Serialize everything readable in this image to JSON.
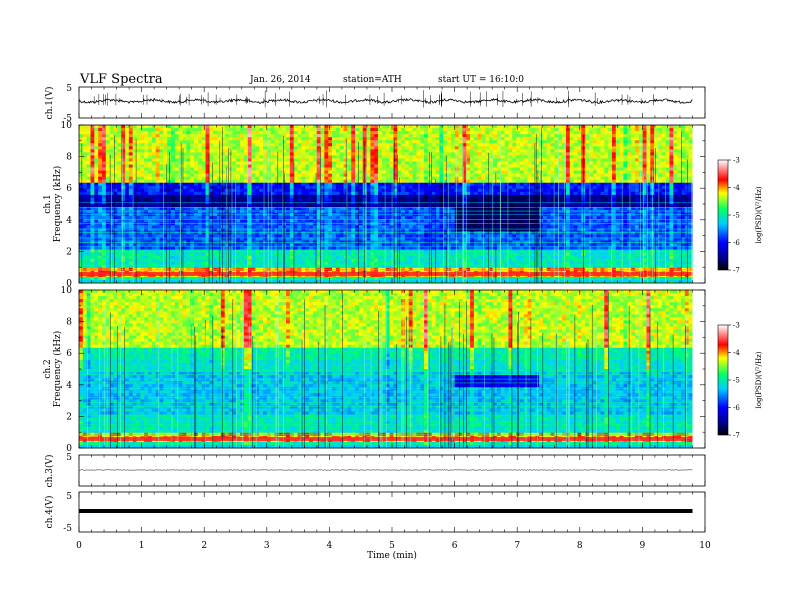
{
  "header": {
    "title": "VLF  Spectra",
    "date": "Jan. 26, 2014",
    "station": "station=ATH",
    "start": "start  UT =   16:10:0"
  },
  "chart_data": [
    {
      "type": "line",
      "name": "ch.1 waveform",
      "ylabel": "ch.1(V)",
      "ylim": [
        -5,
        5
      ],
      "yticks": [
        "5",
        "-5"
      ],
      "xlim": [
        0,
        10
      ]
    },
    {
      "type": "heatmap",
      "name": "ch.1 spectrogram",
      "ylabel_channel": "ch.1",
      "ylabel": "Frequency  (kHz)",
      "ylim": [
        0,
        10
      ],
      "yticks": [
        "0",
        "2",
        "4",
        "6",
        "8",
        "10"
      ],
      "xlim": [
        0,
        10
      ],
      "colorbar": {
        "label": "log(PSD)(V²/Hz)",
        "range": [
          -7,
          -3
        ],
        "ticks": [
          "-3",
          "-4",
          "-5",
          "-6",
          "-7"
        ]
      }
    },
    {
      "type": "heatmap",
      "name": "ch.2 spectrogram",
      "ylabel_channel": "ch.2",
      "ylabel": "Frequency  (kHz)",
      "ylim": [
        0,
        10
      ],
      "yticks": [
        "0",
        "2",
        "4",
        "6",
        "8",
        "10"
      ],
      "xlim": [
        0,
        10
      ],
      "colorbar": {
        "label": "log(PSD)(V²/Hz)",
        "range": [
          -7,
          -3
        ],
        "ticks": [
          "-3",
          "-4",
          "-5",
          "-6",
          "-7"
        ]
      }
    },
    {
      "type": "line",
      "name": "ch.3 waveform",
      "ylabel": "ch.3(V)",
      "ylim": [
        -5,
        5
      ],
      "yticks": [
        "5"
      ],
      "xlim": [
        0,
        10
      ]
    },
    {
      "type": "line",
      "name": "ch.4 waveform",
      "ylabel": "ch.4(V)",
      "ylim": [
        -5,
        5
      ],
      "yticks": [
        "5",
        "-5"
      ],
      "xlim": [
        0,
        10
      ]
    }
  ],
  "xaxis": {
    "label": "Time  (min)",
    "ticks": [
      "0",
      "1",
      "2",
      "3",
      "4",
      "5",
      "6",
      "7",
      "8",
      "9",
      "10"
    ],
    "data_end": 9.8
  },
  "colors": {
    "colormap": [
      "#000000",
      "#0000ff",
      "#00ccff",
      "#00ff66",
      "#ffff00",
      "#ff0000",
      "#ffffff"
    ]
  }
}
